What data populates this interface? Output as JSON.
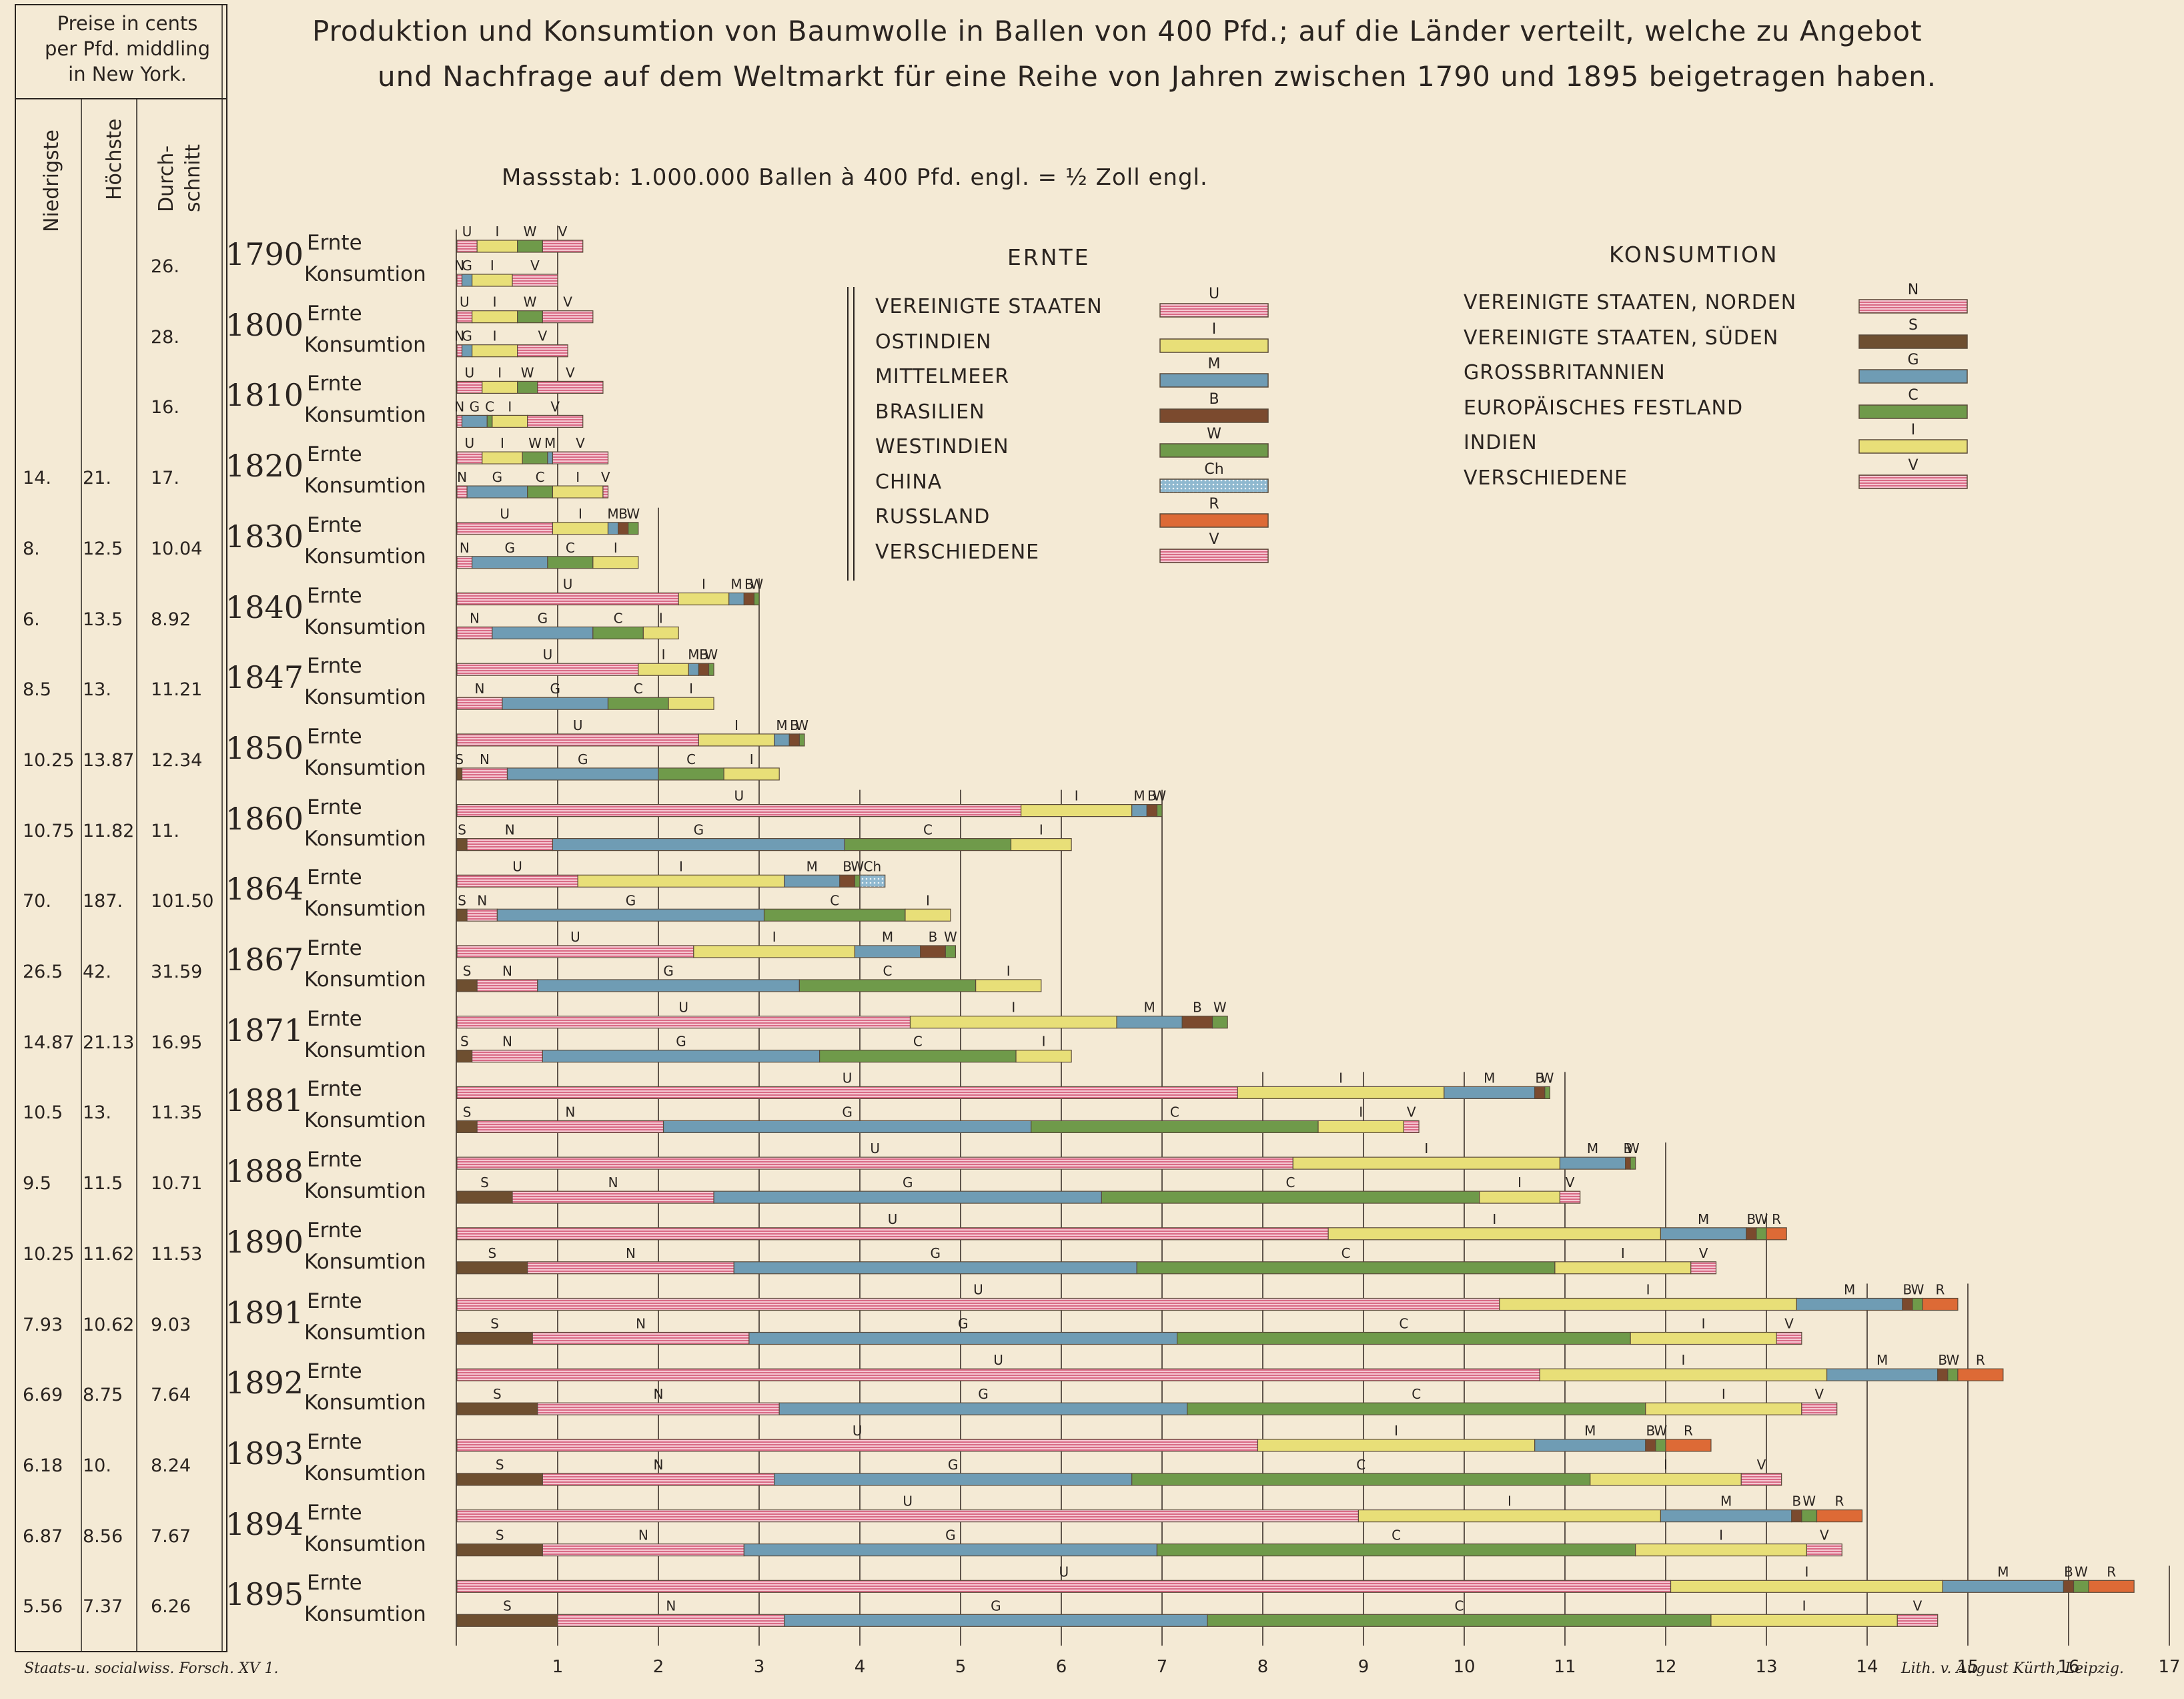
{
  "title_line1": "Produktion und Konsumtion von Baumwolle in Ballen von 400 Pfd.; auf die Länder verteilt, welche zu Angebot",
  "title_line2": "und Nachfrage auf dem Weltmarkt für eine Reihe von Jahren zwischen 1790 und 1895 beigetragen haben.",
  "scale_note": "Massstab: 1.000.000 Ballen à 400 Pfd. engl. = ½ Zoll engl.",
  "footer_left": "Staats-u. socialwiss. Forsch. XV 1.",
  "footer_right": "Lith. v. August Kürth, Leipzig.",
  "price_table": {
    "header": [
      "Preise in cents",
      "per Pfd. middling",
      "in New York."
    ],
    "columns": [
      "Niedrigste",
      "Höchste",
      "Durch-",
      "schnitt"
    ],
    "rows": [
      {
        "year": "1790",
        "low": "",
        "high": "",
        "avg": "26."
      },
      {
        "year": "1800",
        "low": "",
        "high": "",
        "avg": "28."
      },
      {
        "year": "1810",
        "low": "",
        "high": "",
        "avg": "16."
      },
      {
        "year": "1820",
        "low": "14.",
        "high": "21.",
        "avg": "17."
      },
      {
        "year": "1830",
        "low": "8.",
        "high": "12.5",
        "avg": "10.04"
      },
      {
        "year": "1840",
        "low": "6.",
        "high": "13.5",
        "avg": "8.92"
      },
      {
        "year": "1847",
        "low": "8.5",
        "high": "13.",
        "avg": "11.21"
      },
      {
        "year": "1850",
        "low": "10.25",
        "high": "13.87",
        "avg": "12.34"
      },
      {
        "year": "1860",
        "low": "10.75",
        "high": "11.82",
        "avg": "11."
      },
      {
        "year": "1864",
        "low": "70.",
        "high": "187.",
        "avg": "101.50"
      },
      {
        "year": "1867",
        "low": "26.5",
        "high": "42.",
        "avg": "31.59"
      },
      {
        "year": "1871",
        "low": "14.87",
        "high": "21.13",
        "avg": "16.95"
      },
      {
        "year": "1881",
        "low": "10.5",
        "high": "13.",
        "avg": "11.35"
      },
      {
        "year": "1888",
        "low": "9.5",
        "high": "11.5",
        "avg": "10.71"
      },
      {
        "year": "1890",
        "low": "10.25",
        "high": "11.62",
        "avg": "11.53"
      },
      {
        "year": "1891",
        "low": "7.93",
        "high": "10.62",
        "avg": "9.03"
      },
      {
        "year": "1892",
        "low": "6.69",
        "high": "8.75",
        "avg": "7.64"
      },
      {
        "year": "1893",
        "low": "6.18",
        "high": "10.",
        "avg": "8.24"
      },
      {
        "year": "1894",
        "low": "6.87",
        "high": "8.56",
        "avg": "7.67"
      },
      {
        "year": "1895",
        "low": "5.56",
        "high": "7.37",
        "avg": "6.26"
      }
    ]
  },
  "row_labels": {
    "crop": "Ernte",
    "consumption": "Konsumtion"
  },
  "legend": {
    "crop_title": "ERNTE",
    "consumption_title": "KONSUMTION",
    "crop_items": [
      {
        "code": "U",
        "name": "VEREINIGTE STAATEN",
        "color": "#e58ca0",
        "pattern": "stripes"
      },
      {
        "code": "I",
        "name": "OSTINDIEN",
        "color": "#e8df78",
        "pattern": "solid"
      },
      {
        "code": "M",
        "name": "MITTELMEER",
        "color": "#6f9cb4",
        "pattern": "solid"
      },
      {
        "code": "B",
        "name": "BRASILIEN",
        "color": "#7b4a2e",
        "pattern": "solid"
      },
      {
        "code": "W",
        "name": "WESTINDIEN",
        "color": "#6f9a4a",
        "pattern": "solid"
      },
      {
        "code": "Ch",
        "name": "CHINA",
        "color": "#8fb8cf",
        "pattern": "dots"
      },
      {
        "code": "R",
        "name": "RUSSLAND",
        "color": "#dd6a36",
        "pattern": "solid"
      },
      {
        "code": "V",
        "name": "VERSCHIEDENE",
        "color": "#e27d94",
        "pattern": "stripes"
      }
    ],
    "consumption_items": [
      {
        "code": "N",
        "name": "VEREINIGTE STAATEN, NORDEN",
        "color": "#e58ca0",
        "pattern": "stripes"
      },
      {
        "code": "S",
        "name": "VEREINIGTE STAATEN, SÜDEN",
        "color": "#6e4f30",
        "pattern": "solid"
      },
      {
        "code": "G",
        "name": "GROSSBRITANNIEN",
        "color": "#6f9cb4",
        "pattern": "solid"
      },
      {
        "code": "C",
        "name": "EUROPÄISCHES FESTLAND",
        "color": "#6f9a4a",
        "pattern": "solid"
      },
      {
        "code": "I",
        "name": "INDIEN",
        "color": "#e8df78",
        "pattern": "solid"
      },
      {
        "code": "V",
        "name": "VERSCHIEDENE",
        "color": "#e27d94",
        "pattern": "stripes"
      }
    ]
  },
  "chart_data": {
    "type": "bar",
    "orientation": "horizontal",
    "stacked": true,
    "unit": "Millionen Ballen à 400 Pfd.",
    "xlim": [
      0,
      17
    ],
    "x_ticks": [
      "1",
      "2",
      "3",
      "4",
      "5",
      "6",
      "7",
      "8",
      "9",
      "10",
      "11",
      "12",
      "13",
      "14",
      "15",
      "16",
      "17"
    ],
    "categories": [
      "1790",
      "1800",
      "1810",
      "1820",
      "1830",
      "1840",
      "1847",
      "1850",
      "1860",
      "1864",
      "1867",
      "1871",
      "1881",
      "1888",
      "1890",
      "1891",
      "1892",
      "1893",
      "1894",
      "1895"
    ],
    "colors": {
      "U": "#e58ca0",
      "I": "#e8df78",
      "M": "#6f9cb4",
      "B": "#7b4a2e",
      "W": "#6f9a4a",
      "Ch": "#8fb8cf",
      "R": "#dd6a36",
      "V": "#e27d94",
      "N": "#e58ca0",
      "S": "#6e4f30",
      "G": "#6f9cb4",
      "C": "#6f9a4a"
    },
    "ernte": [
      [
        [
          "U",
          0.2
        ],
        [
          "I",
          0.4
        ],
        [
          "W",
          0.25
        ],
        [
          "V",
          0.4
        ]
      ],
      [
        [
          "U",
          0.15
        ],
        [
          "I",
          0.45
        ],
        [
          "W",
          0.25
        ],
        [
          "V",
          0.5
        ]
      ],
      [
        [
          "U",
          0.25
        ],
        [
          "I",
          0.35
        ],
        [
          "W",
          0.2
        ],
        [
          "V",
          0.65
        ]
      ],
      [
        [
          "U",
          0.25
        ],
        [
          "I",
          0.4
        ],
        [
          "W",
          0.25
        ],
        [
          "M",
          0.05
        ],
        [
          "V",
          0.55
        ]
      ],
      [
        [
          "U",
          0.95
        ],
        [
          "I",
          0.55
        ],
        [
          "M",
          0.1
        ],
        [
          "B",
          0.1
        ],
        [
          "W",
          0.1
        ]
      ],
      [
        [
          "U",
          2.2
        ],
        [
          "I",
          0.5
        ],
        [
          "M",
          0.15
        ],
        [
          "B",
          0.1
        ],
        [
          "W",
          0.05
        ]
      ],
      [
        [
          "U",
          1.8
        ],
        [
          "I",
          0.5
        ],
        [
          "M",
          0.1
        ],
        [
          "B",
          0.1
        ],
        [
          "W",
          0.05
        ]
      ],
      [
        [
          "U",
          2.4
        ],
        [
          "I",
          0.75
        ],
        [
          "M",
          0.15
        ],
        [
          "B",
          0.1
        ],
        [
          "W",
          0.05
        ]
      ],
      [
        [
          "U",
          5.6
        ],
        [
          "I",
          1.1
        ],
        [
          "M",
          0.15
        ],
        [
          "B",
          0.1
        ],
        [
          "W",
          0.05
        ]
      ],
      [
        [
          "U",
          1.2
        ],
        [
          "I",
          2.05
        ],
        [
          "M",
          0.55
        ],
        [
          "B",
          0.15
        ],
        [
          "W",
          0.05
        ],
        [
          "Ch",
          0.25
        ]
      ],
      [
        [
          "U",
          2.35
        ],
        [
          "I",
          1.6
        ],
        [
          "M",
          0.65
        ],
        [
          "B",
          0.25
        ],
        [
          "W",
          0.1
        ]
      ],
      [
        [
          "U",
          4.5
        ],
        [
          "I",
          2.05
        ],
        [
          "M",
          0.65
        ],
        [
          "B",
          0.3
        ],
        [
          "W",
          0.15
        ]
      ],
      [
        [
          "U",
          7.75
        ],
        [
          "I",
          2.05
        ],
        [
          "M",
          0.9
        ],
        [
          "B",
          0.1
        ],
        [
          "W",
          0.05
        ]
      ],
      [
        [
          "U",
          8.3
        ],
        [
          "I",
          2.65
        ],
        [
          "M",
          0.65
        ],
        [
          "B",
          0.05
        ],
        [
          "W",
          0.05
        ]
      ],
      [
        [
          "U",
          8.65
        ],
        [
          "I",
          3.3
        ],
        [
          "M",
          0.85
        ],
        [
          "B",
          0.1
        ],
        [
          "W",
          0.1
        ],
        [
          "R",
          0.2
        ]
      ],
      [
        [
          "U",
          10.35
        ],
        [
          "I",
          2.95
        ],
        [
          "M",
          1.05
        ],
        [
          "B",
          0.1
        ],
        [
          "W",
          0.1
        ],
        [
          "R",
          0.35
        ]
      ],
      [
        [
          "U",
          10.75
        ],
        [
          "I",
          2.85
        ],
        [
          "M",
          1.1
        ],
        [
          "B",
          0.1
        ],
        [
          "W",
          0.1
        ],
        [
          "R",
          0.45
        ]
      ],
      [
        [
          "U",
          7.95
        ],
        [
          "I",
          2.75
        ],
        [
          "M",
          1.1
        ],
        [
          "B",
          0.1
        ],
        [
          "W",
          0.1
        ],
        [
          "R",
          0.45
        ]
      ],
      [
        [
          "U",
          8.95
        ],
        [
          "I",
          3.0
        ],
        [
          "M",
          1.3
        ],
        [
          "B",
          0.1
        ],
        [
          "W",
          0.15
        ],
        [
          "R",
          0.45
        ]
      ],
      [
        [
          "U",
          12.05
        ],
        [
          "I",
          2.7
        ],
        [
          "M",
          1.2
        ],
        [
          "B",
          0.1
        ],
        [
          "W",
          0.15
        ],
        [
          "R",
          0.45
        ]
      ]
    ],
    "konsumtion": [
      [
        [
          "N",
          0.05
        ],
        [
          "G",
          0.1
        ],
        [
          "I",
          0.4
        ],
        [
          "V",
          0.45
        ]
      ],
      [
        [
          "N",
          0.05
        ],
        [
          "G",
          0.1
        ],
        [
          "I",
          0.45
        ],
        [
          "V",
          0.5
        ]
      ],
      [
        [
          "N",
          0.05
        ],
        [
          "G",
          0.25
        ],
        [
          "C",
          0.05
        ],
        [
          "I",
          0.35
        ],
        [
          "V",
          0.55
        ]
      ],
      [
        [
          "N",
          0.1
        ],
        [
          "G",
          0.6
        ],
        [
          "C",
          0.25
        ],
        [
          "I",
          0.5
        ],
        [
          "V",
          0.05
        ]
      ],
      [
        [
          "N",
          0.15
        ],
        [
          "G",
          0.75
        ],
        [
          "C",
          0.45
        ],
        [
          "I",
          0.45
        ]
      ],
      [
        [
          "N",
          0.35
        ],
        [
          "G",
          1.0
        ],
        [
          "C",
          0.5
        ],
        [
          "I",
          0.35
        ]
      ],
      [
        [
          "N",
          0.45
        ],
        [
          "G",
          1.05
        ],
        [
          "C",
          0.6
        ],
        [
          "I",
          0.45
        ]
      ],
      [
        [
          "S",
          0.05
        ],
        [
          "N",
          0.45
        ],
        [
          "G",
          1.5
        ],
        [
          "C",
          0.65
        ],
        [
          "I",
          0.55
        ]
      ],
      [
        [
          "S",
          0.1
        ],
        [
          "N",
          0.85
        ],
        [
          "G",
          2.9
        ],
        [
          "C",
          1.65
        ],
        [
          "I",
          0.6
        ]
      ],
      [
        [
          "S",
          0.1
        ],
        [
          "N",
          0.3
        ],
        [
          "G",
          2.65
        ],
        [
          "C",
          1.4
        ],
        [
          "I",
          0.45
        ]
      ],
      [
        [
          "S",
          0.2
        ],
        [
          "N",
          0.6
        ],
        [
          "G",
          2.6
        ],
        [
          "C",
          1.75
        ],
        [
          "I",
          0.65
        ]
      ],
      [
        [
          "S",
          0.15
        ],
        [
          "N",
          0.7
        ],
        [
          "G",
          2.75
        ],
        [
          "C",
          1.95
        ],
        [
          "I",
          0.55
        ]
      ],
      [
        [
          "S",
          0.2
        ],
        [
          "N",
          1.85
        ],
        [
          "G",
          3.65
        ],
        [
          "C",
          2.85
        ],
        [
          "I",
          0.85
        ],
        [
          "V",
          0.15
        ]
      ],
      [
        [
          "S",
          0.55
        ],
        [
          "N",
          2.0
        ],
        [
          "G",
          3.85
        ],
        [
          "C",
          3.75
        ],
        [
          "I",
          0.8
        ],
        [
          "V",
          0.2
        ]
      ],
      [
        [
          "S",
          0.7
        ],
        [
          "N",
          2.05
        ],
        [
          "G",
          4.0
        ],
        [
          "C",
          4.15
        ],
        [
          "I",
          1.35
        ],
        [
          "V",
          0.25
        ]
      ],
      [
        [
          "S",
          0.75
        ],
        [
          "N",
          2.15
        ],
        [
          "G",
          4.25
        ],
        [
          "C",
          4.5
        ],
        [
          "I",
          1.45
        ],
        [
          "V",
          0.25
        ]
      ],
      [
        [
          "S",
          0.8
        ],
        [
          "N",
          2.4
        ],
        [
          "G",
          4.05
        ],
        [
          "C",
          4.55
        ],
        [
          "I",
          1.55
        ],
        [
          "V",
          0.35
        ]
      ],
      [
        [
          "S",
          0.85
        ],
        [
          "N",
          2.3
        ],
        [
          "G",
          3.55
        ],
        [
          "C",
          4.55
        ],
        [
          "I",
          1.5
        ],
        [
          "V",
          0.4
        ]
      ],
      [
        [
          "S",
          0.85
        ],
        [
          "N",
          2.0
        ],
        [
          "G",
          4.1
        ],
        [
          "C",
          4.75
        ],
        [
          "I",
          1.7
        ],
        [
          "V",
          0.35
        ]
      ],
      [
        [
          "S",
          1.0
        ],
        [
          "N",
          2.25
        ],
        [
          "G",
          4.2
        ],
        [
          "C",
          5.0
        ],
        [
          "I",
          1.85
        ],
        [
          "V",
          0.4
        ]
      ]
    ]
  }
}
